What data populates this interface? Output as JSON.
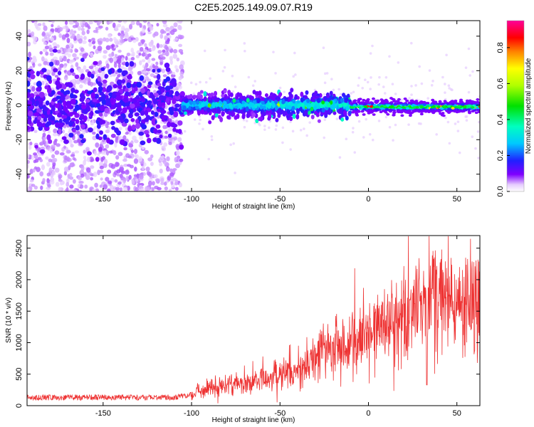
{
  "title": "C2E5.2025.149.09.07.R19",
  "chart_data": [
    {
      "type": "heatmap",
      "xlabel": "Height of straight line (km)",
      "ylabel": "Frequency (Hz)",
      "xlim": [
        -193,
        63
      ],
      "ylim": [
        -50,
        49
      ],
      "x_ticks": [
        -150,
        -100,
        -50,
        0,
        50
      ],
      "y_ticks": [
        -40,
        -20,
        0,
        20,
        40
      ],
      "colorbar": {
        "label": "Normalized spectral amplitude",
        "range": [
          0,
          0.95
        ],
        "ticks": [
          0.0,
          0.2,
          0.4,
          0.6,
          0.8
        ],
        "tick_labels": [
          "0.0",
          "0.2",
          "0.4",
          "0.6",
          "0.8"
        ]
      },
      "description_of_regions": [
        {
          "x_range": [
            -193,
            -105
          ],
          "freq_center": 0,
          "freq_spread": 45,
          "amplitude": 0.1
        },
        {
          "x_range": [
            -105,
            -10
          ],
          "freq_center": 0,
          "freq_spread": 6,
          "amplitude": 0.3
        },
        {
          "x_range": [
            -10,
            63
          ],
          "freq_center": -1,
          "freq_spread": 3,
          "amplitude": 0.5
        }
      ]
    },
    {
      "type": "line",
      "xlabel": "Height of straight line (km)",
      "ylabel": "SNR (10 * v/v)",
      "xlim": [
        -193,
        63
      ],
      "ylim": [
        0,
        2700
      ],
      "x_ticks": [
        -150,
        -100,
        -50,
        0,
        50
      ],
      "y_ticks": [
        0,
        500,
        1000,
        1500,
        2000,
        2500
      ],
      "series": [
        {
          "color": "#ee3333",
          "x": [
            -193,
            -170,
            -150,
            -130,
            -110,
            -100,
            -90,
            -80,
            -70,
            -60,
            -50,
            -40,
            -30,
            -20,
            -10,
            0,
            10,
            20,
            30,
            33,
            40,
            50,
            63
          ],
          "y": [
            130,
            130,
            130,
            130,
            130,
            180,
            300,
            330,
            370,
            440,
            520,
            620,
            780,
            930,
            1050,
            1180,
            1300,
            1480,
            1650,
            1700,
            1720,
            1680,
            1680
          ]
        }
      ]
    }
  ]
}
